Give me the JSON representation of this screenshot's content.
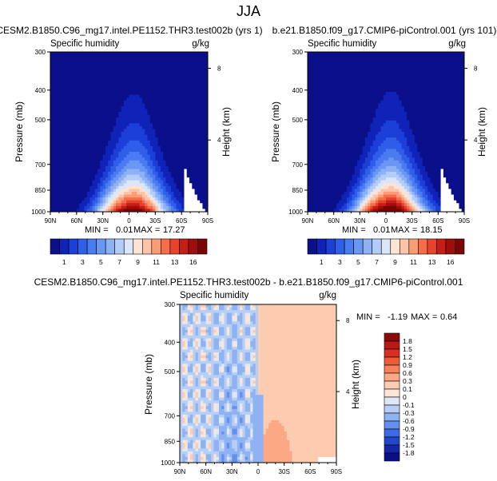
{
  "page": {
    "title": "JJA"
  },
  "chart_data": [
    {
      "type": "contour",
      "title": "CESM2.B1850.C96_mg17.intel.PE1152.THR3.test002b (yrs 1)",
      "variable": "Specific humidity",
      "units": "g/kg",
      "ylabel": "Pressure (mb)",
      "y2label": "Height (km)",
      "x_ticks": [
        "90N",
        "60N",
        "30N",
        "0",
        "30S",
        "60S",
        "90S"
      ],
      "y_ticks": [
        300,
        400,
        500,
        700,
        850,
        1000
      ],
      "y2_ticks": [
        8,
        4
      ],
      "min_label": "MIN = ",
      "min": "0.01",
      "max_label": "MAX = ",
      "max": "17.27",
      "peak": {
        "lat": -5,
        "value": 17.27
      },
      "colorbar": {
        "levels": [
          "1",
          "3",
          "5",
          "7",
          "9",
          "11",
          "13",
          "16"
        ],
        "colors": [
          "#0a0f8a",
          "#1023b8",
          "#1c3fd8",
          "#2f5ee8",
          "#4a7bf0",
          "#6a97f4",
          "#8db1f6",
          "#b4cdf8",
          "#dbe6fa",
          "#fde3d4",
          "#fcc4a8",
          "#fb9c76",
          "#f66d4b",
          "#e5432c",
          "#c51e17",
          "#a00d0d",
          "#7a0505"
        ]
      }
    },
    {
      "type": "contour",
      "title": "b.e21.B1850.f09_g17.CMIP6-piControl.001 (yrs 101)",
      "variable": "Specific humidity",
      "units": "g/kg",
      "ylabel": "Pressure (mb)",
      "y2label": "Height (km)",
      "x_ticks": [
        "90N",
        "60N",
        "30N",
        "0",
        "30S",
        "60S",
        "90S"
      ],
      "y_ticks": [
        300,
        400,
        500,
        700,
        850,
        1000
      ],
      "y2_ticks": [
        8,
        4
      ],
      "min_label": "MIN = ",
      "min": "0.01",
      "max_label": "MAX = ",
      "max": "18.15",
      "peak": {
        "lat": -5,
        "value": 18.15
      },
      "colorbar": {
        "levels": [
          "1",
          "3",
          "5",
          "7",
          "9",
          "11",
          "13",
          "16"
        ],
        "colors": [
          "#0a0f8a",
          "#1023b8",
          "#1c3fd8",
          "#2f5ee8",
          "#4a7bf0",
          "#6a97f4",
          "#8db1f6",
          "#b4cdf8",
          "#dbe6fa",
          "#fde3d4",
          "#fcc4a8",
          "#fb9c76",
          "#f66d4b",
          "#e5432c",
          "#c51e17",
          "#a00d0d",
          "#7a0505"
        ]
      }
    },
    {
      "type": "contour-difference",
      "title": "CESM2.B1850.C96_mg17.intel.PE1152.THR3.test002b - b.e21.B1850.f09_g17.CMIP6-piControl.001",
      "variable": "Specific humidity",
      "units": "g/kg",
      "ylabel": "Pressure (mb)",
      "y2label": "Height (km)",
      "x_ticks": [
        "90N",
        "60N",
        "30N",
        "0",
        "30S",
        "60S",
        "90S"
      ],
      "y_ticks": [
        300,
        400,
        500,
        700,
        850,
        1000
      ],
      "y2_ticks": [
        8,
        4
      ],
      "min_label": "MIN = ",
      "min": "-1.19",
      "max_label": "MAX = ",
      "max": "0.64",
      "colorbar": {
        "levels": [
          "1.8",
          "1.5",
          "1.2",
          "0.9",
          "0.6",
          "0.3",
          "0.1",
          "0",
          "-0.1",
          "-0.3",
          "-0.6",
          "-0.9",
          "-1.2",
          "-1.5",
          "-1.8"
        ],
        "colors": [
          "#8b0a0a",
          "#b51a14",
          "#d6321f",
          "#ef5a38",
          "#f9805a",
          "#fca884",
          "#fdcbb0",
          "#fde6d8",
          "#dfe8f6",
          "#b8cff4",
          "#8eb2f2",
          "#6390ee",
          "#3d6ae6",
          "#2446cc",
          "#1428a6",
          "#0a1080"
        ]
      }
    }
  ]
}
